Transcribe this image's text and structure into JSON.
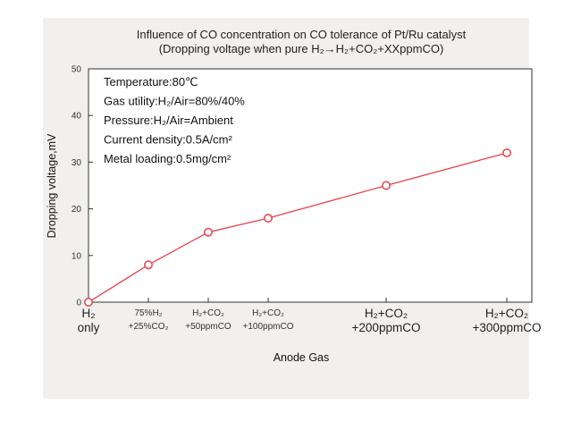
{
  "chart_data": {
    "type": "line",
    "title": "Influence of CO concentration on CO tolerance of Pt/Ru catalyst",
    "subtitle": "(Dropping voltage when pure H₂→H₂+CO₂+XXppmCO)",
    "xlabel": "Anode Gas",
    "ylabel": "Dropping voltage,mV",
    "ylim": [
      0,
      50
    ],
    "yticks": [
      "0",
      "10",
      "20",
      "30",
      "40",
      "50"
    ],
    "grid": false,
    "legend": "none",
    "annotations": [
      "Temperature:80℃",
      "Gas utility:H₂/Air=80%/40%",
      "Pressure:H₂/Air=Ambient",
      "Current density:0.5A/cm²",
      "Metal loading:0.5mg/cm²"
    ],
    "categories": [
      {
        "line1": "H₂",
        "line2": "only",
        "style": "big"
      },
      {
        "line1": "75%H₂",
        "line2": "+25%CO₂",
        "style": "small"
      },
      {
        "line1": "H₂+CO₂",
        "line2": "+50ppmCO",
        "style": "small"
      },
      {
        "line1": "H₂+CO₂",
        "line2": "+100ppmCO",
        "style": "small"
      },
      {
        "line1": "H₂+CO₂",
        "line2": "+200ppmCO",
        "style": "big"
      },
      {
        "line1": "H₂+CO₂",
        "line2": "+300ppmCO",
        "style": "big"
      }
    ],
    "x": [
      0,
      25,
      50,
      100,
      200,
      300
    ],
    "series": [
      {
        "values": [
          0,
          8,
          15,
          18,
          25,
          32
        ],
        "color": "#e8404a"
      }
    ]
  }
}
